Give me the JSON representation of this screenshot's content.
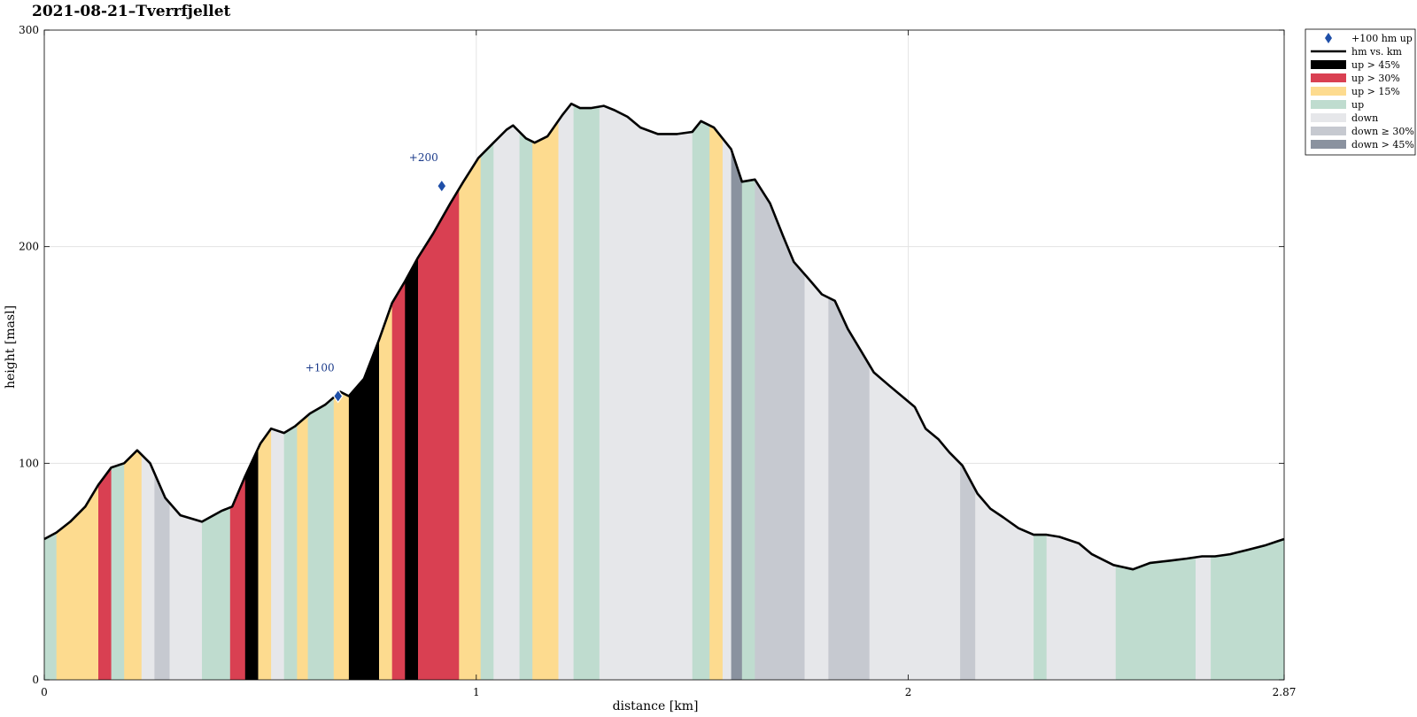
{
  "chart_data": {
    "type": "area",
    "title": "2021-08-21–Tverrfjellet",
    "xlabel": "distance [km]",
    "ylabel": "height [masl]",
    "xlim": [
      0,
      2.87
    ],
    "ylim": [
      0,
      300
    ],
    "xticks": [
      0,
      1,
      2,
      2.87
    ],
    "xtick_labels": [
      "0",
      "1",
      "2",
      "2.87"
    ],
    "yticks": [
      0,
      100,
      200,
      300
    ],
    "ytick_labels": [
      "0",
      "100",
      "200",
      "300"
    ],
    "grid": true,
    "legend_position": "outside-top-right",
    "colors": {
      "up_45": "#000000",
      "up_30": "#d94052",
      "up_15": "#fddb8f",
      "up": "#bfdccf",
      "down": "#e6e7ea",
      "down_30": "#c6c9d0",
      "down_45": "#8a929f",
      "line": "#000000",
      "marker": "#1f4fa8",
      "marker_label": "#1a3a8a"
    },
    "legend": [
      {
        "key": "marker",
        "label": "+100 hm up"
      },
      {
        "key": "line",
        "label": "hm vs. km"
      },
      {
        "key": "up_45",
        "label": "up > 45%"
      },
      {
        "key": "up_30",
        "label": "up > 30%"
      },
      {
        "key": "up_15",
        "label": "up > 15%"
      },
      {
        "key": "up",
        "label": "up"
      },
      {
        "key": "down",
        "label": "down"
      },
      {
        "key": "down_30",
        "label": "down ≥ 30%"
      },
      {
        "key": "down_45",
        "label": "down > 45%"
      }
    ],
    "profile": {
      "x": [
        0,
        0.028,
        0.06,
        0.095,
        0.125,
        0.155,
        0.185,
        0.215,
        0.245,
        0.28,
        0.315,
        0.365,
        0.41,
        0.435,
        0.465,
        0.5,
        0.525,
        0.555,
        0.58,
        0.615,
        0.65,
        0.685,
        0.705,
        0.74,
        0.775,
        0.805,
        0.835,
        0.865,
        0.9,
        0.94,
        0.97,
        1.005,
        1.04,
        1.07,
        1.085,
        1.115,
        1.135,
        1.165,
        1.2,
        1.22,
        1.24,
        1.265,
        1.295,
        1.32,
        1.35,
        1.38,
        1.42,
        1.465,
        1.5,
        1.52,
        1.55,
        1.59,
        1.615,
        1.645,
        1.68,
        1.71,
        1.735,
        1.77,
        1.8,
        1.83,
        1.86,
        1.89,
        1.92,
        1.955,
        1.985,
        2.015,
        2.04,
        2.07,
        2.095,
        2.125,
        2.16,
        2.19,
        2.22,
        2.255,
        2.29,
        2.32,
        2.35,
        2.395,
        2.425,
        2.475,
        2.52,
        2.56,
        2.605,
        2.645,
        2.68,
        2.71,
        2.745,
        2.785,
        2.825,
        2.855,
        2.87
      ],
      "y": [
        65,
        68,
        73,
        80,
        90,
        98,
        100,
        106,
        100,
        84,
        76,
        73,
        78,
        80,
        94,
        109,
        116,
        114,
        117,
        123,
        127,
        133,
        131,
        139,
        157,
        174,
        184,
        195,
        206,
        220,
        230,
        241,
        248,
        254,
        256,
        250,
        248,
        251,
        261,
        266,
        264,
        264,
        265,
        263,
        260,
        255,
        252,
        252,
        253,
        258,
        255,
        245,
        230,
        231,
        220,
        205,
        193,
        185,
        178,
        175,
        162,
        152,
        142,
        136,
        131,
        126,
        116,
        111,
        105,
        99,
        86,
        79,
        75,
        70,
        67,
        67,
        66,
        63,
        58,
        53,
        51,
        54,
        55,
        56,
        57,
        57,
        58,
        60,
        62,
        64,
        65
      ]
    },
    "bands": [
      {
        "from": 0,
        "to": 0.028,
        "cat": "up"
      },
      {
        "from": 0.028,
        "to": 0.125,
        "cat": "up_15"
      },
      {
        "from": 0.125,
        "to": 0.155,
        "cat": "up_30"
      },
      {
        "from": 0.155,
        "to": 0.185,
        "cat": "up"
      },
      {
        "from": 0.185,
        "to": 0.225,
        "cat": "up_15"
      },
      {
        "from": 0.225,
        "to": 0.255,
        "cat": "down"
      },
      {
        "from": 0.255,
        "to": 0.29,
        "cat": "down_30"
      },
      {
        "from": 0.29,
        "to": 0.365,
        "cat": "down"
      },
      {
        "from": 0.365,
        "to": 0.43,
        "cat": "up"
      },
      {
        "from": 0.43,
        "to": 0.465,
        "cat": "up_30"
      },
      {
        "from": 0.465,
        "to": 0.495,
        "cat": "up_45"
      },
      {
        "from": 0.495,
        "to": 0.525,
        "cat": "up_15"
      },
      {
        "from": 0.525,
        "to": 0.555,
        "cat": "down"
      },
      {
        "from": 0.555,
        "to": 0.585,
        "cat": "up"
      },
      {
        "from": 0.585,
        "to": 0.61,
        "cat": "up_15"
      },
      {
        "from": 0.61,
        "to": 0.67,
        "cat": "up"
      },
      {
        "from": 0.67,
        "to": 0.705,
        "cat": "up_15"
      },
      {
        "from": 0.705,
        "to": 0.775,
        "cat": "up_45"
      },
      {
        "from": 0.775,
        "to": 0.805,
        "cat": "up_15"
      },
      {
        "from": 0.805,
        "to": 0.835,
        "cat": "up_30"
      },
      {
        "from": 0.835,
        "to": 0.865,
        "cat": "up_45"
      },
      {
        "from": 0.865,
        "to": 0.96,
        "cat": "up_30"
      },
      {
        "from": 0.96,
        "to": 1.01,
        "cat": "up_15"
      },
      {
        "from": 1.01,
        "to": 1.04,
        "cat": "up"
      },
      {
        "from": 1.04,
        "to": 1.1,
        "cat": "down"
      },
      {
        "from": 1.1,
        "to": 1.13,
        "cat": "up"
      },
      {
        "from": 1.13,
        "to": 1.19,
        "cat": "up_15"
      },
      {
        "from": 1.19,
        "to": 1.225,
        "cat": "down"
      },
      {
        "from": 1.225,
        "to": 1.285,
        "cat": "up"
      },
      {
        "from": 1.285,
        "to": 1.5,
        "cat": "down"
      },
      {
        "from": 1.5,
        "to": 1.54,
        "cat": "up"
      },
      {
        "from": 1.54,
        "to": 1.57,
        "cat": "up_15"
      },
      {
        "from": 1.57,
        "to": 1.59,
        "cat": "down"
      },
      {
        "from": 1.59,
        "to": 1.615,
        "cat": "down_45"
      },
      {
        "from": 1.615,
        "to": 1.645,
        "cat": "up"
      },
      {
        "from": 1.645,
        "to": 1.76,
        "cat": "down_30"
      },
      {
        "from": 1.76,
        "to": 1.815,
        "cat": "down"
      },
      {
        "from": 1.815,
        "to": 1.91,
        "cat": "down_30"
      },
      {
        "from": 1.91,
        "to": 2.12,
        "cat": "down"
      },
      {
        "from": 2.12,
        "to": 2.155,
        "cat": "down_30"
      },
      {
        "from": 2.155,
        "to": 2.29,
        "cat": "down"
      },
      {
        "from": 2.29,
        "to": 2.32,
        "cat": "up"
      },
      {
        "from": 2.32,
        "to": 2.48,
        "cat": "down"
      },
      {
        "from": 2.48,
        "to": 2.665,
        "cat": "up"
      },
      {
        "from": 2.665,
        "to": 2.7,
        "cat": "down"
      },
      {
        "from": 2.7,
        "to": 2.87,
        "cat": "up"
      }
    ],
    "markers": [
      {
        "x": 0.68,
        "y": 131,
        "label": "+100"
      },
      {
        "x": 0.92,
        "y": 228,
        "label": "+200"
      }
    ]
  }
}
